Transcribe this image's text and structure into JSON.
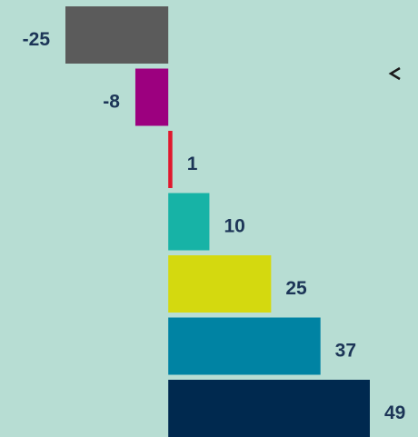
{
  "chart_data": {
    "type": "bar",
    "orientation": "horizontal",
    "values": [
      -25,
      -8,
      1,
      10,
      25,
      37,
      49
    ],
    "colors": [
      "#5b5b5b",
      "#9c007f",
      "#e0182d",
      "#17b3a6",
      "#d4d90f",
      "#0083a3",
      "#00294f"
    ]
  }
}
